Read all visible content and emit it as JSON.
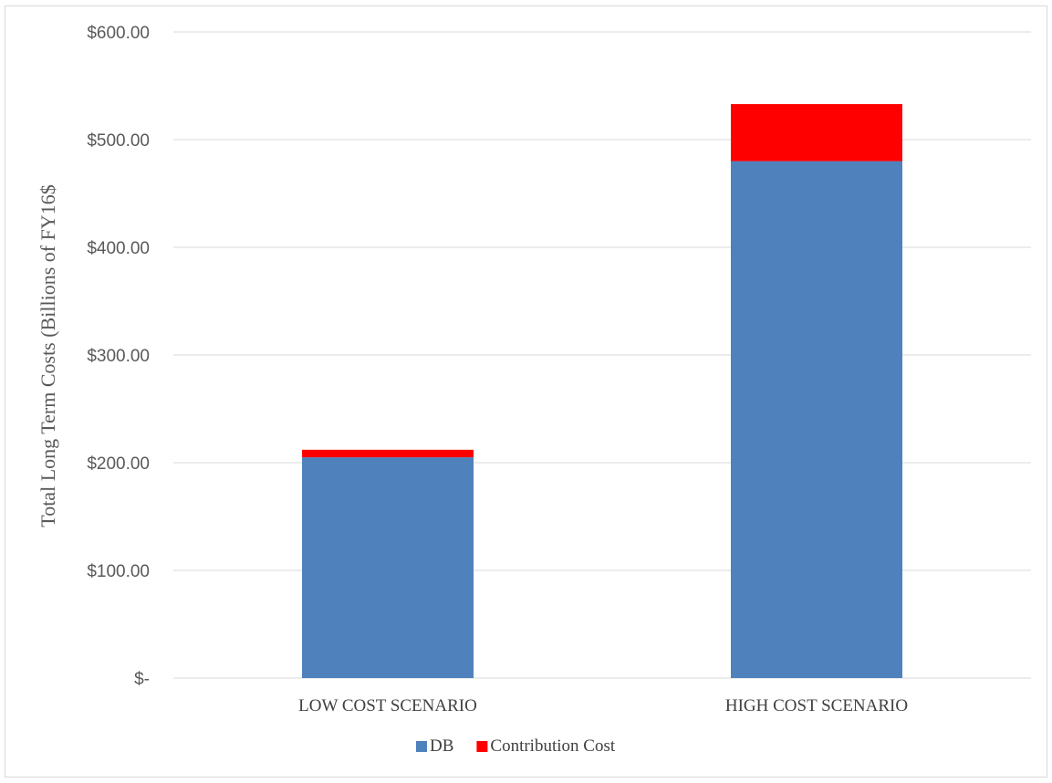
{
  "chart_data": {
    "type": "bar",
    "stacked": true,
    "categories": [
      "LOW COST SCENARIO",
      "HIGH COST SCENARIO"
    ],
    "series": [
      {
        "name": "DB",
        "values": [
          205,
          480
        ],
        "color": "#4f81bd"
      },
      {
        "name": "Contribution Cost",
        "values": [
          7,
          53
        ],
        "color": "#ff0000"
      }
    ],
    "ylabel": "Total Long Term Costs (Billions of FY16$",
    "ylim": [
      0,
      600
    ],
    "yticks": [
      0,
      100,
      200,
      300,
      400,
      500,
      600
    ],
    "ytick_labels": [
      "$-",
      "$100.00",
      "$200.00",
      "$300.00",
      "$400.00",
      "$500.00",
      "$600.00"
    ],
    "grid": true,
    "legend": "bottom-center"
  }
}
